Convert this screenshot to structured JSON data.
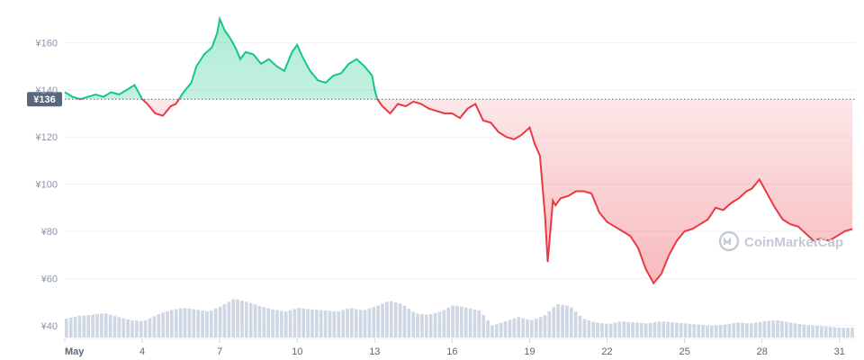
{
  "chart_data": {
    "type": "area",
    "currency_symbol": "¥",
    "y_ticks": [
      "¥40",
      "¥60",
      "¥80",
      "¥100",
      "¥120",
      "¥140",
      "¥160"
    ],
    "y_tick_values": [
      40,
      60,
      80,
      100,
      120,
      140,
      160
    ],
    "x_ticks": [
      "May",
      "4",
      "7",
      "10",
      "13",
      "16",
      "19",
      "22",
      "25",
      "28",
      "31"
    ],
    "x_tick_days": [
      1,
      4,
      7,
      10,
      13,
      16,
      19,
      22,
      25,
      28,
      31
    ],
    "ylim": [
      35,
      175
    ],
    "xlim": [
      1,
      31.6
    ],
    "reference_price": 136,
    "reference_label": "¥136",
    "colors": {
      "up": "#16c784",
      "down": "#ea3943",
      "grid": "#eff2f5",
      "volume": "#cfd6e4",
      "label_bg": "#58667e"
    },
    "grid": true,
    "watermark": "CoinMarketCap",
    "price_series": {
      "x": [
        1,
        1.3,
        1.6,
        1.9,
        2.2,
        2.5,
        2.8,
        3.1,
        3.4,
        3.7,
        4.0,
        4.2,
        4.5,
        4.8,
        5.1,
        5.3,
        5.6,
        5.9,
        6.1,
        6.4,
        6.7,
        6.9,
        7.0,
        7.2,
        7.4,
        7.6,
        7.8,
        8.0,
        8.3,
        8.6,
        8.9,
        9.2,
        9.5,
        9.8,
        10.0,
        10.2,
        10.5,
        10.8,
        11.1,
        11.4,
        11.7,
        12.0,
        12.3,
        12.6,
        12.9,
        13.0,
        13.1,
        13.3,
        13.6,
        13.9,
        14.2,
        14.5,
        14.8,
        15.1,
        15.4,
        15.7,
        16.0,
        16.3,
        16.6,
        16.9,
        17.2,
        17.5,
        17.8,
        18.1,
        18.4,
        18.7,
        19.0,
        19.2,
        19.4,
        19.6,
        19.7,
        19.9,
        20.0,
        20.2,
        20.5,
        20.8,
        21.1,
        21.4,
        21.7,
        22.0,
        22.3,
        22.6,
        22.9,
        23.2,
        23.5,
        23.8,
        24.1,
        24.4,
        24.7,
        25.0,
        25.3,
        25.6,
        25.9,
        26.2,
        26.5,
        26.8,
        27.1,
        27.4,
        27.6,
        27.9,
        28.2,
        28.5,
        28.8,
        29.1,
        29.4,
        29.7,
        30.0,
        30.3,
        30.6,
        30.9,
        31.2,
        31.5
      ],
      "y": [
        139,
        137,
        136,
        137,
        138,
        137,
        139,
        138,
        140,
        142,
        136,
        134,
        130,
        129,
        133,
        134,
        139,
        143,
        150,
        155,
        158,
        164,
        170,
        165,
        162,
        158,
        153,
        156,
        155,
        151,
        153,
        150,
        148,
        156,
        159,
        154,
        148,
        144,
        143,
        146,
        147,
        151,
        153,
        150,
        146,
        140,
        136,
        133,
        130,
        134,
        133,
        135,
        134,
        132,
        131,
        130,
        130,
        128,
        132,
        134,
        127,
        126,
        122,
        120,
        119,
        121,
        124,
        117,
        112,
        86,
        67,
        93,
        91,
        94,
        95,
        97,
        97,
        96,
        88,
        84,
        82,
        80,
        78,
        73,
        64,
        58,
        62,
        70,
        76,
        80,
        81,
        83,
        85,
        90,
        89,
        92,
        94,
        97,
        98,
        102,
        96,
        90,
        85,
        83,
        82,
        79,
        76,
        77,
        76,
        78,
        80,
        81
      ]
    },
    "volume_series": {
      "x": [
        1,
        1.5,
        2,
        2.5,
        3,
        3.5,
        4,
        4.5,
        5,
        5.5,
        6,
        6.5,
        7,
        7.5,
        8,
        8.5,
        9,
        9.5,
        10,
        10.5,
        11,
        11.5,
        12,
        12.5,
        13,
        13.5,
        14,
        14.5,
        15,
        15.5,
        16,
        16.5,
        17,
        17.5,
        18,
        18.5,
        19,
        19.5,
        20,
        20.5,
        21,
        21.5,
        22,
        22.5,
        23,
        23.5,
        24,
        24.5,
        25,
        25.5,
        26,
        26.5,
        27,
        27.5,
        28,
        28.5,
        29,
        29.5,
        30,
        30.5,
        31,
        31.5
      ],
      "y": [
        0.35,
        0.4,
        0.42,
        0.45,
        0.38,
        0.32,
        0.3,
        0.42,
        0.5,
        0.55,
        0.52,
        0.48,
        0.58,
        0.72,
        0.66,
        0.58,
        0.52,
        0.48,
        0.55,
        0.52,
        0.5,
        0.48,
        0.55,
        0.5,
        0.58,
        0.68,
        0.62,
        0.45,
        0.42,
        0.48,
        0.6,
        0.55,
        0.5,
        0.22,
        0.3,
        0.38,
        0.32,
        0.4,
        0.62,
        0.58,
        0.35,
        0.28,
        0.25,
        0.3,
        0.28,
        0.26,
        0.3,
        0.28,
        0.26,
        0.24,
        0.22,
        0.24,
        0.28,
        0.26,
        0.3,
        0.32,
        0.28,
        0.24,
        0.22,
        0.2,
        0.18,
        0.18
      ]
    }
  }
}
